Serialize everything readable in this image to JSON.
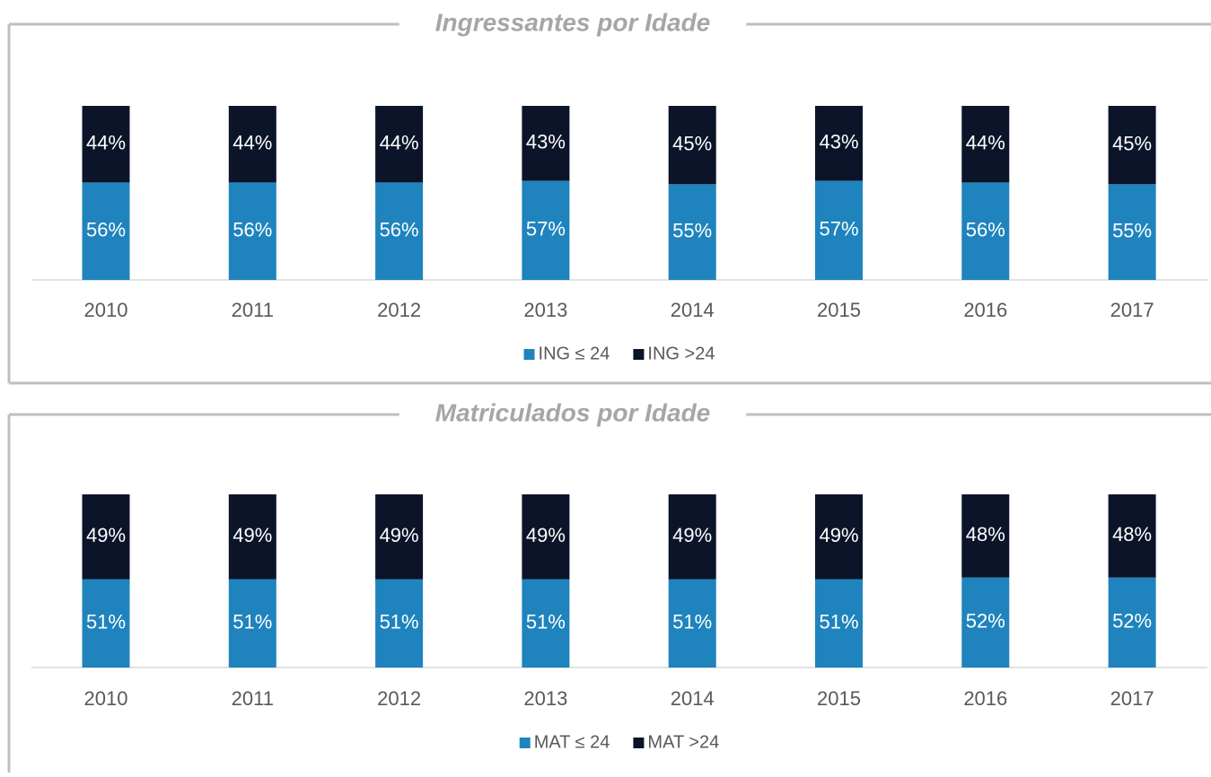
{
  "chart_data": [
    {
      "type": "bar",
      "stacked": true,
      "title": "Ingressantes por Idade",
      "categories": [
        "2010",
        "2011",
        "2012",
        "2013",
        "2014",
        "2015",
        "2016",
        "2017"
      ],
      "ylim": [
        0,
        100
      ],
      "series": [
        {
          "name": "ING ≤ 24",
          "color": "#1f83bd",
          "values": [
            56,
            56,
            56,
            57,
            55,
            57,
            56,
            55
          ],
          "value_labels": [
            "56%",
            "56%",
            "56%",
            "57%",
            "55%",
            "57%",
            "56%",
            "55%"
          ]
        },
        {
          "name": "ING >24",
          "color": "#0b1429",
          "values": [
            44,
            44,
            44,
            43,
            45,
            43,
            44,
            45
          ],
          "value_labels": [
            "44%",
            "44%",
            "44%",
            "43%",
            "45%",
            "43%",
            "44%",
            "45%"
          ]
        }
      ]
    },
    {
      "type": "bar",
      "stacked": true,
      "title": "Matriculados por Idade",
      "categories": [
        "2010",
        "2011",
        "2012",
        "2013",
        "2014",
        "2015",
        "2016",
        "2017"
      ],
      "ylim": [
        0,
        100
      ],
      "series": [
        {
          "name": "MAT ≤ 24",
          "color": "#1f83bd",
          "values": [
            51,
            51,
            51,
            51,
            51,
            51,
            52,
            52
          ],
          "value_labels": [
            "51%",
            "51%",
            "51%",
            "51%",
            "51%",
            "51%",
            "52%",
            "52%"
          ]
        },
        {
          "name": "MAT >24",
          "color": "#0b1429",
          "values": [
            49,
            49,
            49,
            49,
            49,
            49,
            48,
            48
          ],
          "value_labels": [
            "49%",
            "49%",
            "49%",
            "49%",
            "49%",
            "49%",
            "48%",
            "48%"
          ]
        }
      ]
    }
  ]
}
